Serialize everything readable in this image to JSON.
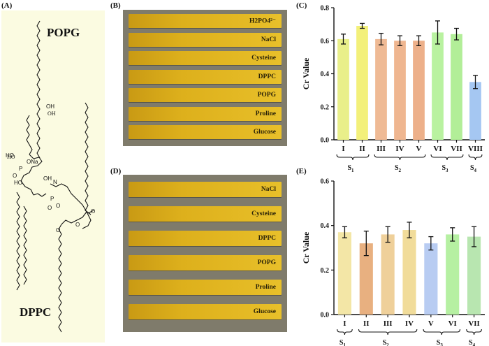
{
  "panels": {
    "a": "(A)",
    "b": "(B)",
    "c": "(C)",
    "d": "(D)",
    "e": "(E)"
  },
  "molecules": {
    "popg": "POPG",
    "dppc": "DPPC",
    "atoms": {
      "oh1": "OH",
      "ho1": "HO",
      "ona": "ONa",
      "p1": "P",
      "o1": "O",
      "oh2": "OH",
      "ho2": "HO",
      "nplus": "N",
      "p2": "P",
      "o2": "O",
      "o3": "O",
      "o4": "O",
      "o5": "O",
      "o6": "O"
    }
  },
  "strips_b": [
    "H2PO4²⁻",
    "NaCl",
    "Cysteine",
    "DPPC",
    "POPG",
    "Proline",
    "Glucose"
  ],
  "strips_d": [
    "NaCl",
    "Cysteine",
    "DPPC",
    "POPG",
    "Proline",
    "Glucose"
  ],
  "chart_data": [
    {
      "type": "bar",
      "title": "",
      "ylabel": "Cr Value",
      "xlabel": "",
      "ylim": [
        0.0,
        0.8
      ],
      "yticks": [
        "0.0",
        "0.2",
        "0.4",
        "0.6",
        "0.8"
      ],
      "categories": [
        "I",
        "II",
        "III",
        "IV",
        "V",
        "VI",
        "VII",
        "VIII"
      ],
      "values": [
        0.61,
        0.69,
        0.61,
        0.6,
        0.6,
        0.65,
        0.64,
        0.35
      ],
      "errors": [
        0.03,
        0.015,
        0.035,
        0.03,
        0.03,
        0.07,
        0.035,
        0.04
      ],
      "colors": [
        "#e9ef8a",
        "#f3f07a",
        "#efba95",
        "#efb690",
        "#edb08a",
        "#b9f2a0",
        "#b2ee98",
        "#a5c7f2"
      ],
      "groups": [
        {
          "label": "S1",
          "base": "S",
          "sub": "1",
          "from": 0,
          "to": 1
        },
        {
          "label": "S2",
          "base": "S",
          "sub": "2",
          "from": 2,
          "to": 4
        },
        {
          "label": "S3",
          "base": "S",
          "sub": "3",
          "from": 5,
          "to": 6
        },
        {
          "label": "S4",
          "base": "S",
          "sub": "4",
          "from": 7,
          "to": 7
        }
      ]
    },
    {
      "type": "bar",
      "title": "",
      "ylabel": "Cr Value",
      "xlabel": "",
      "ylim": [
        0.0,
        0.6
      ],
      "yticks": [
        "0.0",
        "0.2",
        "0.4",
        "0.6"
      ],
      "categories": [
        "I",
        "II",
        "III",
        "IV",
        "V",
        "VI",
        "VII"
      ],
      "values": [
        0.37,
        0.32,
        0.36,
        0.38,
        0.32,
        0.36,
        0.35
      ],
      "errors": [
        0.025,
        0.055,
        0.035,
        0.035,
        0.03,
        0.03,
        0.045
      ],
      "colors": [
        "#f3e6a6",
        "#e8b080",
        "#efd09a",
        "#f1dc9a",
        "#b8ccf2",
        "#b6f0a2",
        "#b8e6b0"
      ],
      "groups": [
        {
          "label": "S1",
          "base": "S",
          "sub": "1",
          "from": 0,
          "to": 0
        },
        {
          "label": "S2",
          "base": "S",
          "sub": "2",
          "from": 1,
          "to": 3
        },
        {
          "label": "S3",
          "base": "S",
          "sub": "3",
          "from": 4,
          "to": 5
        },
        {
          "label": "S4",
          "base": "S",
          "sub": "4",
          "from": 6,
          "to": 6
        }
      ]
    }
  ]
}
